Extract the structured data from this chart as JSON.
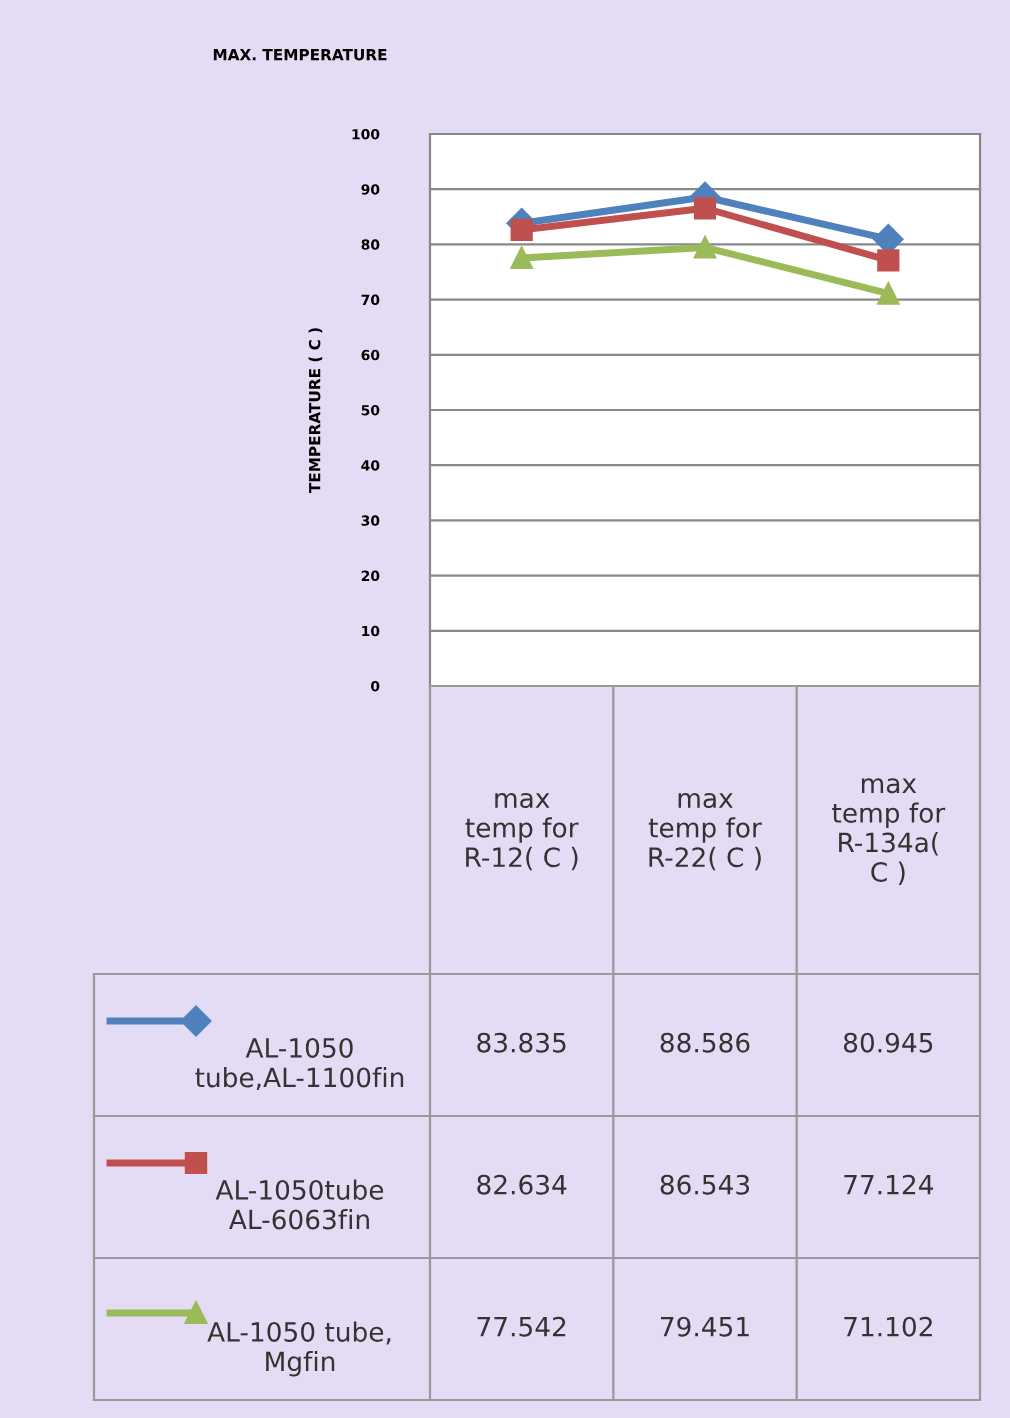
{
  "chart_data": {
    "type": "line",
    "title": "MAX. TEMPERATURE",
    "ylabel": "TEMPERATURE ( C )",
    "categories": [
      "max temp for R-12( C )",
      "max temp for R-22( C )",
      "max temp for R-134a( C )"
    ],
    "series": [
      {
        "name": "AL-1050 tube,AL-1100fin",
        "color": "#4f81bd",
        "marker": "diamond",
        "values": [
          83.835,
          88.586,
          80.945
        ]
      },
      {
        "name": "AL-1050tube AL-6063fin",
        "color": "#c0504d",
        "marker": "square",
        "values": [
          82.634,
          86.543,
          77.124
        ]
      },
      {
        "name": "AL-1050 tube, Mgfin",
        "color": "#9bbb59",
        "marker": "triangle",
        "values": [
          77.542,
          79.451,
          71.102
        ]
      }
    ],
    "ylim": [
      0,
      100
    ],
    "yticks": [
      0,
      10,
      20,
      30,
      40,
      50,
      60,
      70,
      80,
      90,
      100
    ],
    "grid": "y",
    "legend": "bottom",
    "data_labels": true
  }
}
